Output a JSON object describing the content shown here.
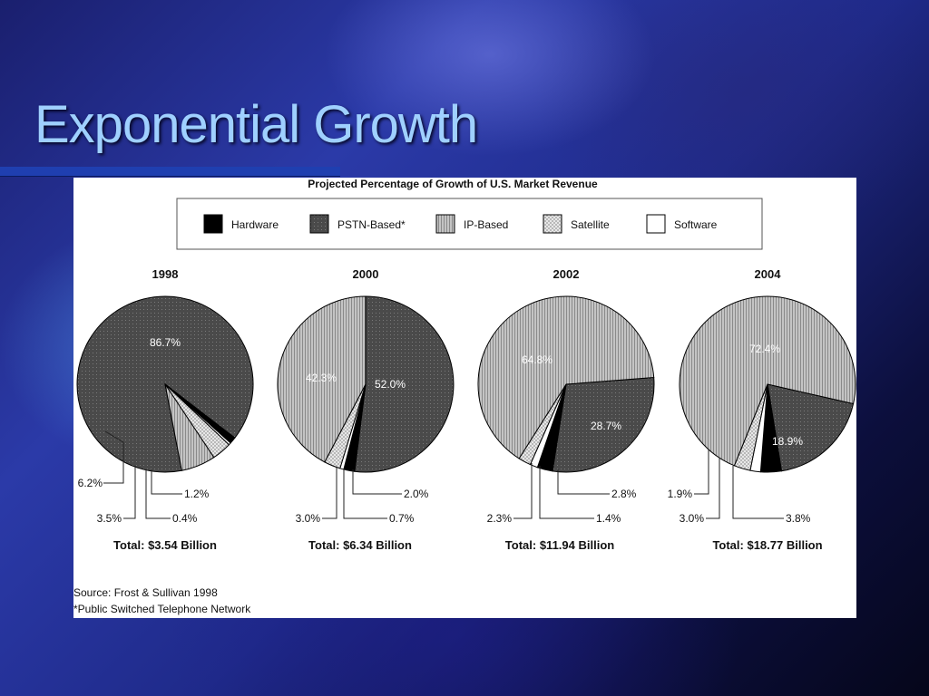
{
  "slide": {
    "title": "Exponential Growth"
  },
  "chart_data": {
    "type": "pie",
    "title": "Projected Percentage of Growth of U.S. Market Revenue",
    "legend": [
      {
        "name": "Hardware",
        "pattern": "solid-black"
      },
      {
        "name": "PSTN-Based*",
        "pattern": "dark-dots"
      },
      {
        "name": "IP-Based",
        "pattern": "vertical-lines"
      },
      {
        "name": "Satellite",
        "pattern": "light-crosshatch"
      },
      {
        "name": "Software",
        "pattern": "white"
      }
    ],
    "legend_placement": "top",
    "categories": [
      "Hardware",
      "PSTN-Based*",
      "IP-Based",
      "Satellite",
      "Software"
    ],
    "pies": [
      {
        "year": "1998",
        "values": [
          1.2,
          86.7,
          6.2,
          3.5,
          0.4
        ],
        "labels": [
          "1.2%",
          "86.7%",
          "6.2%",
          "3.5%",
          "0.4%"
        ],
        "total": "Total: $3.54 Billion"
      },
      {
        "year": "2000",
        "values": [
          2.0,
          52.0,
          42.3,
          3.0,
          0.7
        ],
        "labels": [
          "2.0%",
          "52.0%",
          "42.3%",
          "3.0%",
          "0.7%"
        ],
        "total": "Total: $6.34 Billion"
      },
      {
        "year": "2002",
        "values": [
          2.8,
          28.7,
          64.8,
          2.3,
          1.4
        ],
        "labels": [
          "2.8%",
          "28.7%",
          "64.8%",
          "2.3%",
          "1.4%"
        ],
        "total": "Total: $11.94 Billion"
      },
      {
        "year": "2004",
        "values": [
          3.8,
          18.9,
          72.4,
          3.0,
          1.9
        ],
        "labels": [
          "3.8%",
          "18.9%",
          "72.4%",
          "3.0%",
          "1.9%"
        ],
        "total": "Total: $18.77 Billion"
      }
    ],
    "source": "Source: Frost & Sullivan 1998",
    "footnote": "*Public Switched Telephone Network"
  },
  "colors": {
    "title": "#9fd0ff",
    "pstn": "#4a4a4a",
    "ip": "#b5b5b5",
    "hardware": "#000000",
    "satellite": "#dedede",
    "software": "#ffffff"
  }
}
